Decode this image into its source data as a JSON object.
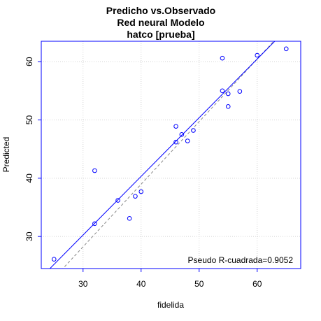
{
  "chart_data": {
    "type": "scatter",
    "title_lines": [
      "Predicho vs.Observado",
      "Red neural Modelo",
      "hatco [prueba]"
    ],
    "xlabel": "fidelida",
    "ylabel": "Predicted",
    "xlim": [
      22.8,
      67.5
    ],
    "ylim": [
      24.5,
      63.5
    ],
    "x_ticks": [
      30,
      40,
      50,
      60
    ],
    "y_ticks": [
      30,
      40,
      50,
      60
    ],
    "grid": true,
    "points": [
      {
        "x": 25,
        "y": 26.1
      },
      {
        "x": 32,
        "y": 41.3
      },
      {
        "x": 32,
        "y": 32.2
      },
      {
        "x": 36,
        "y": 36.2
      },
      {
        "x": 38,
        "y": 33.1
      },
      {
        "x": 39,
        "y": 36.9
      },
      {
        "x": 40,
        "y": 37.7
      },
      {
        "x": 46,
        "y": 48.9
      },
      {
        "x": 46,
        "y": 46.2
      },
      {
        "x": 47,
        "y": 47.5
      },
      {
        "x": 48,
        "y": 46.4
      },
      {
        "x": 49,
        "y": 48.2
      },
      {
        "x": 54,
        "y": 60.6
      },
      {
        "x": 54,
        "y": 55.0
      },
      {
        "x": 55,
        "y": 54.5
      },
      {
        "x": 55,
        "y": 52.3
      },
      {
        "x": 57,
        "y": 54.9
      },
      {
        "x": 60,
        "y": 61.1
      },
      {
        "x": 65,
        "y": 62.2
      }
    ],
    "fit_line": {
      "color": "#0000ff",
      "style": "solid",
      "points": [
        [
          22.8,
          23.0
        ],
        [
          67.5,
          68.0
        ]
      ]
    },
    "reference_line": {
      "color": "#888888",
      "style": "dashed",
      "points": [
        [
          22.8,
          20.5
        ],
        [
          67.5,
          68.5
        ]
      ]
    },
    "annotation": "Pseudo R-cuadrada=0.9052",
    "colors": {
      "points": "#0000ff",
      "frame": "#0000ff",
      "grid": "#d3d3d3"
    }
  }
}
